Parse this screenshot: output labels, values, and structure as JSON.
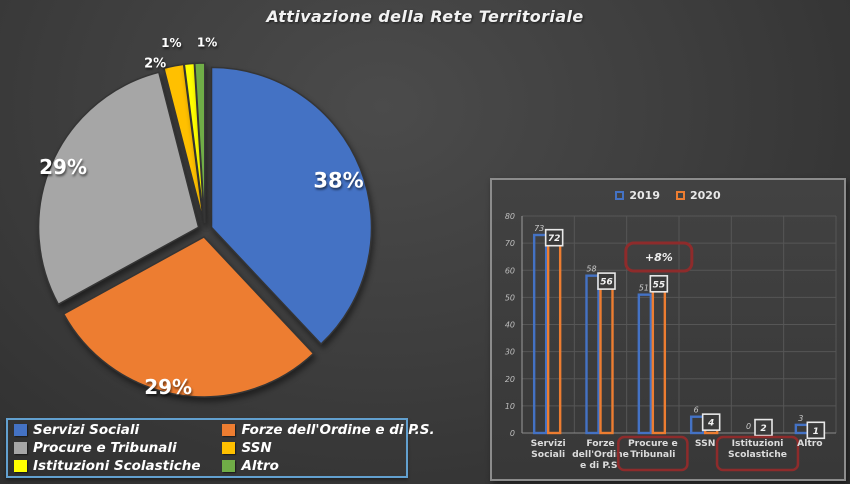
{
  "title": "Attivazione della Rete Territoriale",
  "theme": {
    "background": "#3c3c3c",
    "panel_border": "#8c8c8c",
    "legend_box_border": "#62a0cf",
    "annotation_red": "#8e2b2b",
    "text_light": "#f2f2f2"
  },
  "chart_data": [
    {
      "type": "pie",
      "labels": [
        "Servizi Sociali",
        "Forze dell'Ordine e di P.S.",
        "Procure e Tribunali",
        "SSN",
        "Istituzioni Scolastiche",
        "Altro"
      ],
      "values": [
        38,
        29,
        29,
        2,
        1,
        1
      ],
      "value_labels": [
        "38%",
        "29%",
        "29%",
        "2%",
        "1%",
        "1%"
      ],
      "colors": [
        "#4472C4",
        "#ED7D31",
        "#A6A6A6",
        "#FFC000",
        "#FFFF00",
        "#70AD47"
      ],
      "legend_position": "bottom-left",
      "legend_items": [
        {
          "label": "Servizi Sociali",
          "color": "#4472C4"
        },
        {
          "label": "Forze dell'Ordine e di P.S.",
          "color": "#ED7D31"
        },
        {
          "label": "Procure e Tribunali",
          "color": "#A6A6A6"
        },
        {
          "label": "SSN",
          "color": "#FFC000"
        },
        {
          "label": "Istituzioni Scolastiche",
          "color": "#FFFF00"
        },
        {
          "label": "Altro",
          "color": "#70AD47"
        }
      ]
    },
    {
      "type": "bar",
      "categories": [
        "Servizi Sociali",
        "Forze dell'Ordine e di P.S.",
        "Procure e Tribunali",
        "SSN",
        "Istituzioni Scolastiche",
        "Altro"
      ],
      "category_label_lines": [
        [
          "Servizi",
          "Sociali"
        ],
        [
          "Forze",
          "dell'Ordine",
          "e di P.S."
        ],
        [
          "Procure e",
          "Tribunali"
        ],
        [
          "SSN"
        ],
        [
          "Istituzioni",
          "Scolastiche"
        ],
        [
          "Altro"
        ]
      ],
      "series": [
        {
          "name": "2019",
          "color": "#4472C4",
          "values": [
            73,
            58,
            51,
            6,
            0,
            3
          ]
        },
        {
          "name": "2020",
          "color": "#ED7D31",
          "values": [
            72,
            56,
            55,
            4,
            2,
            1
          ],
          "value_labels_boxed": true
        }
      ],
      "ylim": [
        0,
        80
      ],
      "yticks": [
        0,
        10,
        20,
        30,
        40,
        50,
        60,
        70,
        80
      ],
      "grid": true,
      "legend_position": "top",
      "annotation": {
        "text": "+8%",
        "category": "Procure e Tribunali",
        "box_color": "#8e2b2b"
      },
      "highlighted_categories": [
        "Procure e Tribunali",
        "Istituzioni Scolastiche"
      ],
      "highlight_box_color": "#8e2b2b"
    }
  ]
}
